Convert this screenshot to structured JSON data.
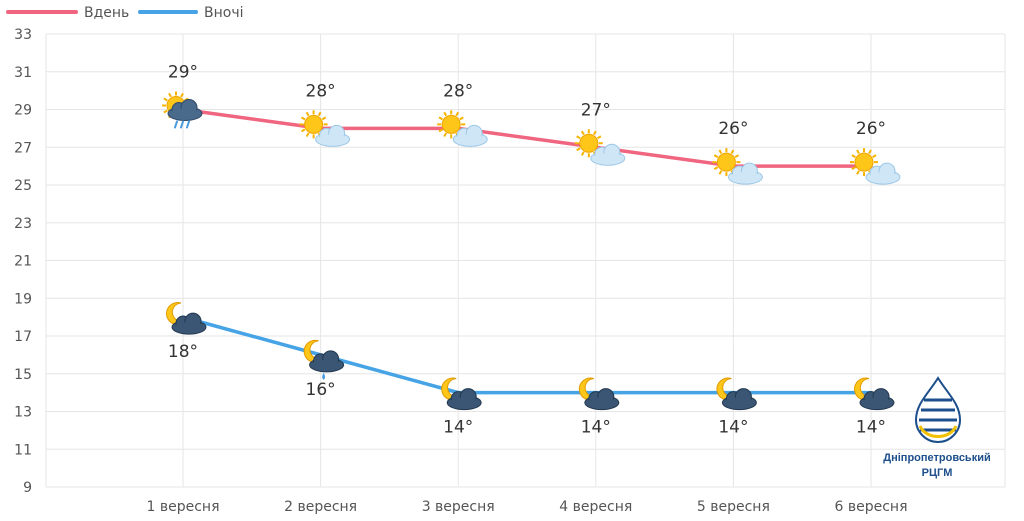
{
  "chart_data": {
    "type": "line",
    "categories": [
      "1 вересня",
      "2 вересня",
      "3 вересня",
      "4 вересня",
      "5 вересня",
      "6 вересня"
    ],
    "series": [
      {
        "name": "Вдень",
        "color": "#f0657f",
        "values": [
          29,
          28,
          28,
          27,
          26,
          26
        ],
        "labels": [
          "29°",
          "28°",
          "28°",
          "27°",
          "26°",
          "26°"
        ],
        "icons": [
          "sun-cloud-rain-icon",
          "sun-cloud-icon",
          "sun-cloud-icon",
          "sun-cloud-icon",
          "sun-cloud-icon",
          "sun-cloud-icon"
        ]
      },
      {
        "name": "Вночі",
        "color": "#45a3e6",
        "values": [
          18,
          16,
          14,
          14,
          14,
          14
        ],
        "labels": [
          "18°",
          "16°",
          "14°",
          "14°",
          "14°",
          "14°"
        ],
        "icons": [
          "moon-cloud-icon",
          "moon-cloud-rain-icon",
          "moon-cloud-icon",
          "moon-cloud-icon",
          "moon-cloud-icon",
          "moon-cloud-icon"
        ]
      }
    ],
    "yticks": [
      9,
      11,
      13,
      15,
      17,
      19,
      21,
      23,
      25,
      27,
      29,
      31,
      33
    ],
    "ylim": [
      9,
      33
    ],
    "grid": true,
    "legend_position": "top-left"
  },
  "logo": {
    "line1": "Дніпропетровський",
    "line2": "РЦГМ",
    "colors": [
      "#1d4f8c",
      "#f2c200"
    ]
  }
}
